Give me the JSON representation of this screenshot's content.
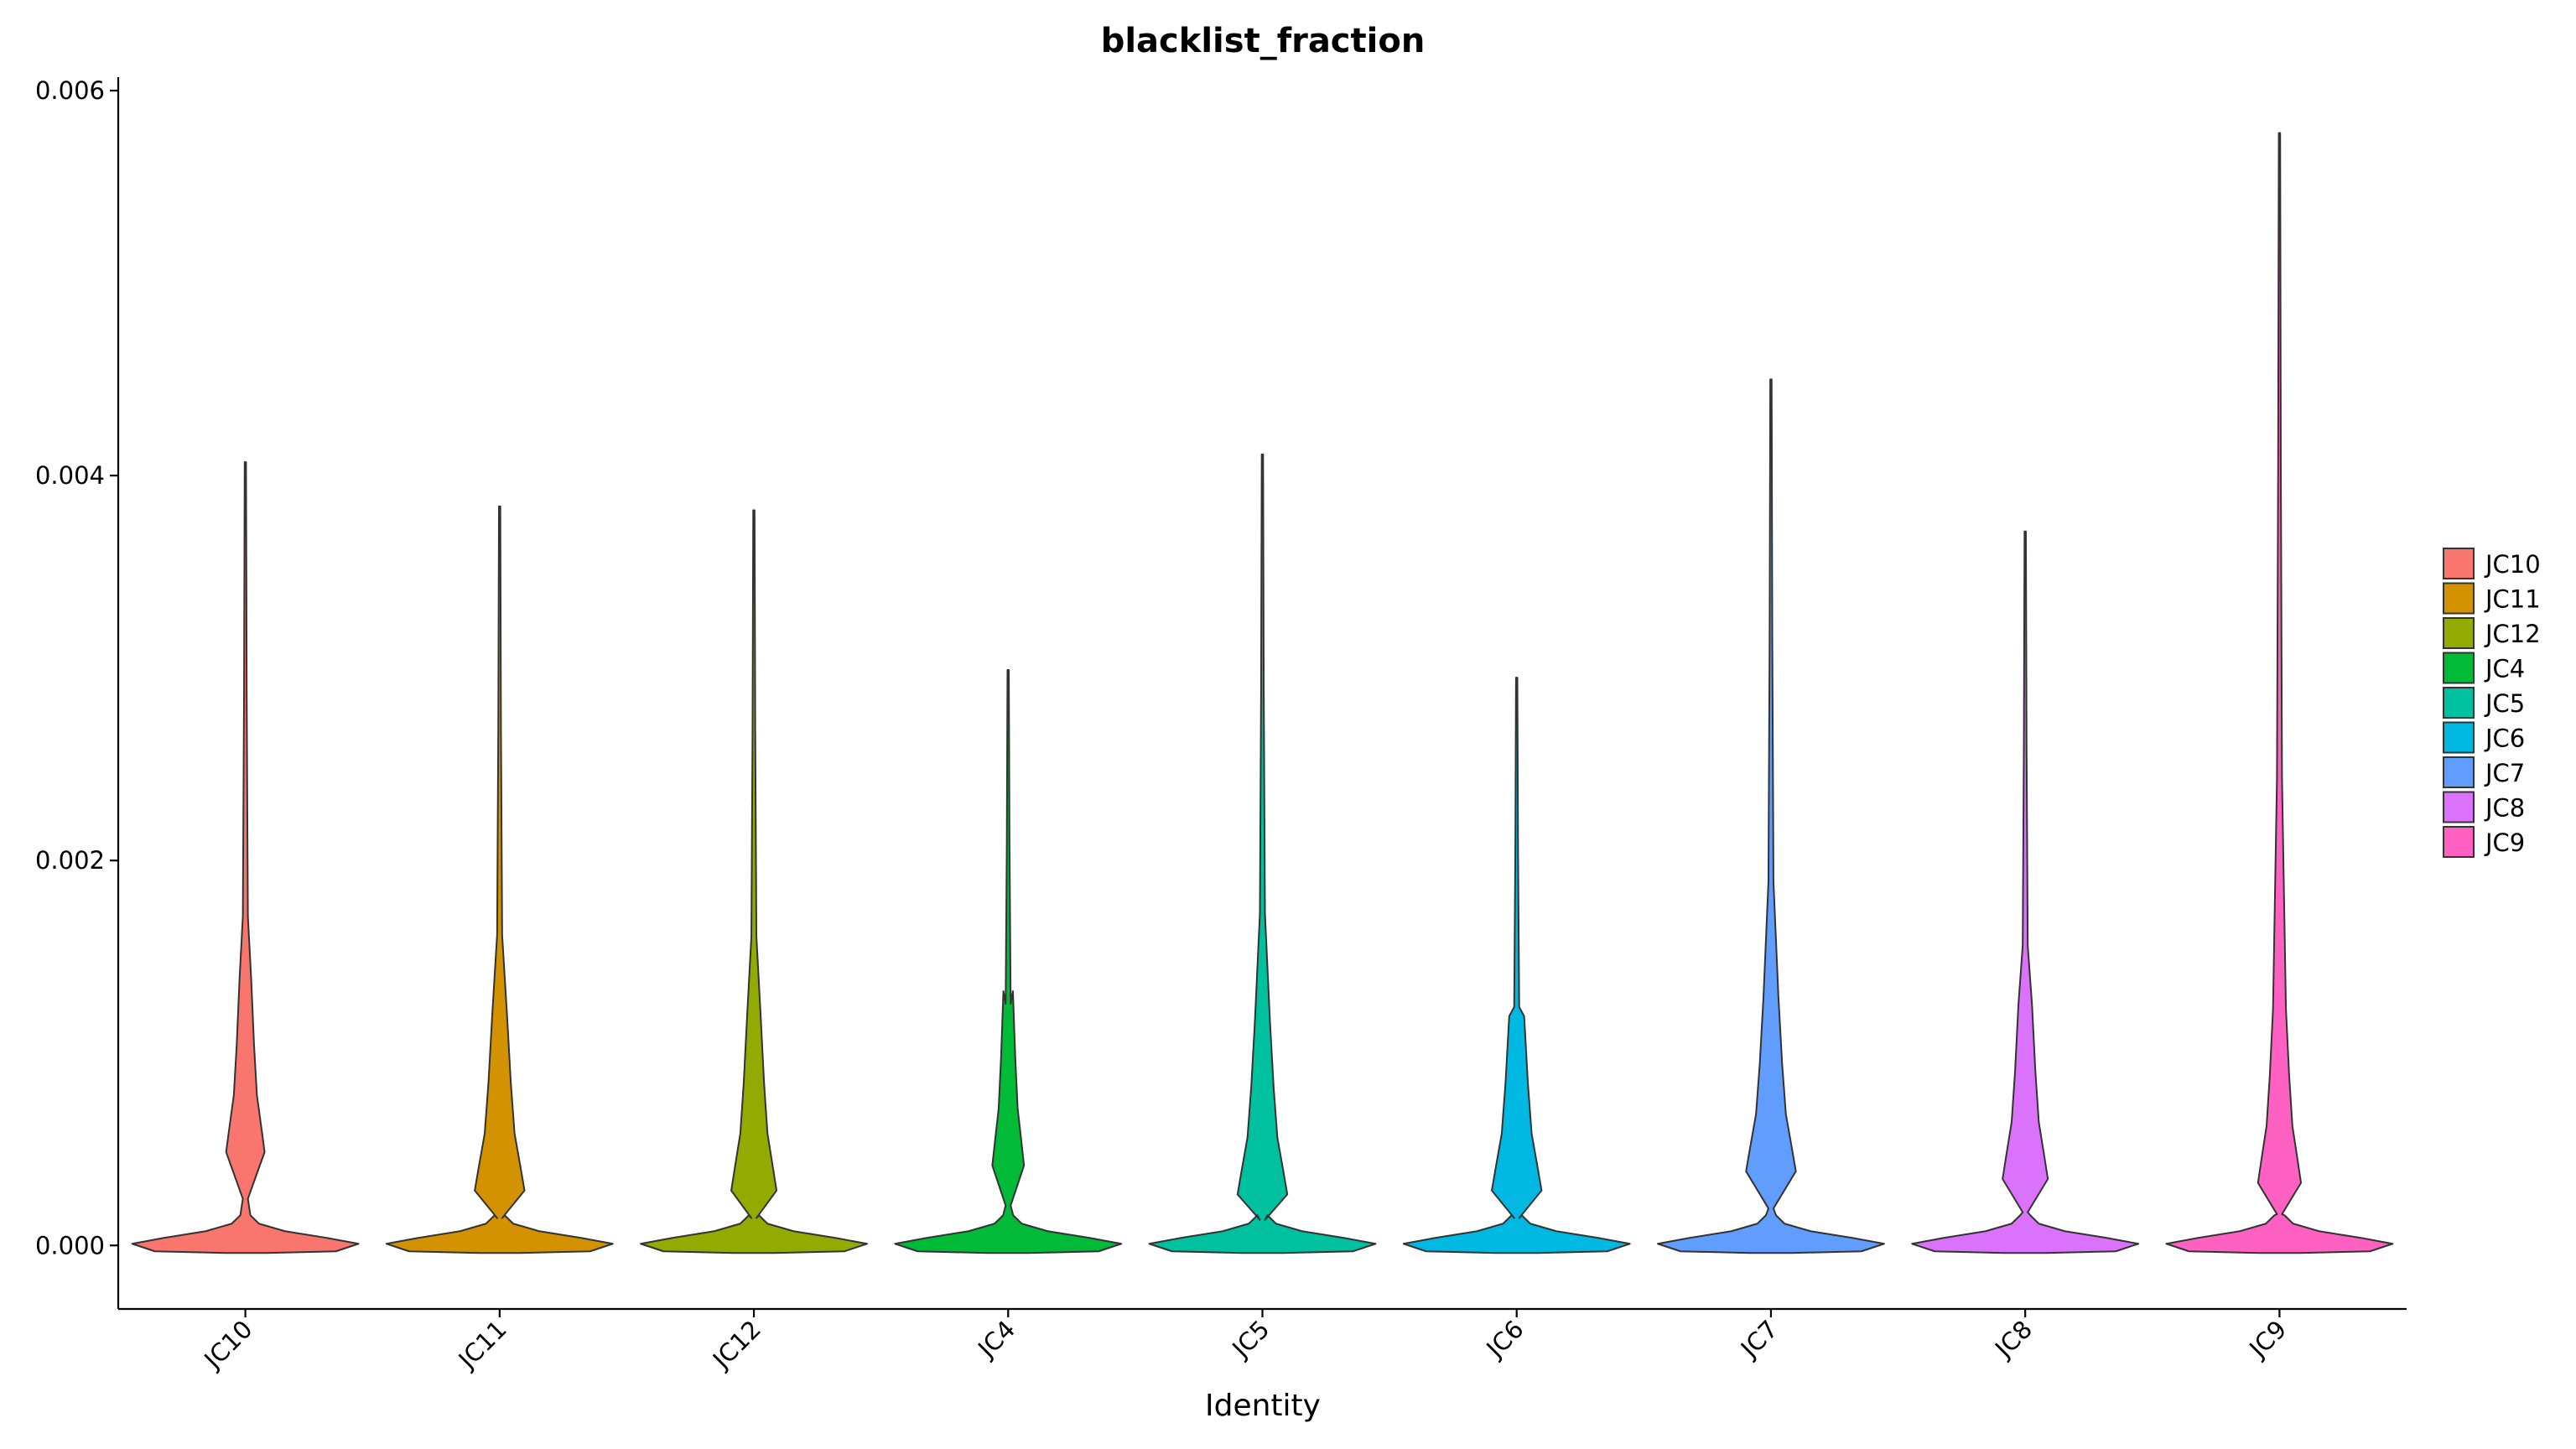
{
  "chart_data": {
    "type": "violin",
    "title": "blacklist_fraction",
    "xlabel": "Identity",
    "ylabel": "",
    "categories": [
      "JC10",
      "JC11",
      "JC12",
      "JC4",
      "JC5",
      "JC6",
      "JC7",
      "JC8",
      "JC9"
    ],
    "colors": [
      "#F8766D",
      "#D39200",
      "#93AA00",
      "#00BA38",
      "#00C19F",
      "#00B9E3",
      "#619CFF",
      "#DB72FB",
      "#FF61C3"
    ],
    "y_ticks": [
      "0.000",
      "0.002",
      "0.004",
      "0.006"
    ],
    "ylim": [
      -0.00033,
      0.00607
    ],
    "series": [
      {
        "name": "JC10",
        "min": 0.0,
        "max": 0.00407,
        "mode": 0.0,
        "secondary_bulge": 0.00052,
        "shoulder_width": 0.17
      },
      {
        "name": "JC11",
        "min": 0.0,
        "max": 0.00384,
        "mode": 0.0,
        "secondary_bulge": 0.00032,
        "shoulder_width": 0.22
      },
      {
        "name": "JC12",
        "min": 0.0,
        "max": 0.00382,
        "mode": 0.0,
        "secondary_bulge": 0.00032,
        "shoulder_width": 0.2
      },
      {
        "name": "JC4",
        "min": 0.0,
        "max": 0.00299,
        "mode": 0.0,
        "secondary_bulge": 0.00045,
        "shoulder_width": 0.14
      },
      {
        "name": "JC5",
        "min": 0.0,
        "max": 0.00411,
        "mode": 0.0,
        "secondary_bulge": 0.0003,
        "shoulder_width": 0.22
      },
      {
        "name": "JC6",
        "min": 0.0,
        "max": 0.00295,
        "mode": 0.0,
        "secondary_bulge": 0.00032,
        "shoulder_width": 0.22
      },
      {
        "name": "JC7",
        "min": 0.0,
        "max": 0.0045,
        "mode": 0.0,
        "secondary_bulge": 0.00042,
        "shoulder_width": 0.22
      },
      {
        "name": "JC8",
        "min": 0.0,
        "max": 0.00371,
        "mode": 0.0,
        "secondary_bulge": 0.00038,
        "shoulder_width": 0.2
      },
      {
        "name": "JC9",
        "min": 0.0,
        "max": 0.00578,
        "mode": 0.0,
        "secondary_bulge": 0.00036,
        "shoulder_width": 0.19
      }
    ],
    "legend": {
      "position": "right",
      "entries": [
        "JC10",
        "JC11",
        "JC12",
        "JC4",
        "JC5",
        "JC6",
        "JC7",
        "JC8",
        "JC9"
      ]
    },
    "grid": false
  }
}
